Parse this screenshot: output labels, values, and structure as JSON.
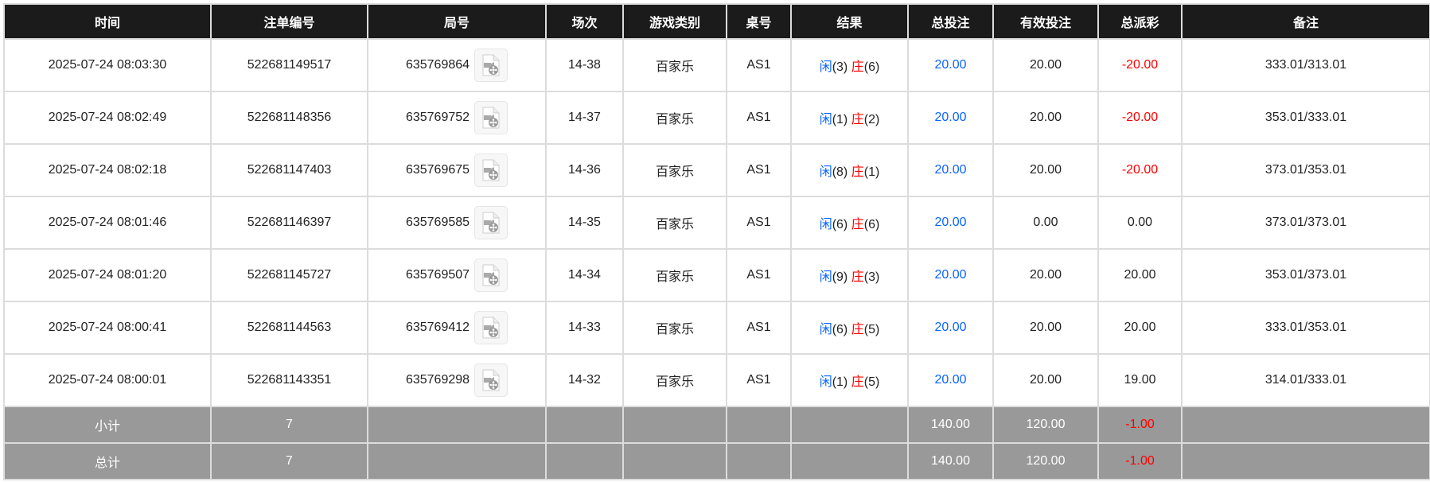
{
  "headers": [
    "时间",
    "注单编号",
    "局号",
    "场次",
    "游戏类别",
    "桌号",
    "结果",
    "总投注",
    "有效投注",
    "总派彩",
    "备注"
  ],
  "rows": [
    {
      "time": "2025-07-24 08:03:30",
      "bet_id": "522681149517",
      "round": "635769864",
      "session": "14-38",
      "game": "百家乐",
      "table": "AS1",
      "player": "闲",
      "player_pts": "(3)",
      "banker": "庄",
      "banker_pts": "(6)",
      "total_bet": "20.00",
      "valid_bet": "20.00",
      "payout": "-20.00",
      "payout_negative": true,
      "note": "333.01/313.01"
    },
    {
      "time": "2025-07-24 08:02:49",
      "bet_id": "522681148356",
      "round": "635769752",
      "session": "14-37",
      "game": "百家乐",
      "table": "AS1",
      "player": "闲",
      "player_pts": "(1)",
      "banker": "庄",
      "banker_pts": "(2)",
      "total_bet": "20.00",
      "valid_bet": "20.00",
      "payout": "-20.00",
      "payout_negative": true,
      "note": "353.01/333.01"
    },
    {
      "time": "2025-07-24 08:02:18",
      "bet_id": "522681147403",
      "round": "635769675",
      "session": "14-36",
      "game": "百家乐",
      "table": "AS1",
      "player": "闲",
      "player_pts": "(8)",
      "banker": "庄",
      "banker_pts": "(1)",
      "total_bet": "20.00",
      "valid_bet": "20.00",
      "payout": "-20.00",
      "payout_negative": true,
      "note": "373.01/353.01"
    },
    {
      "time": "2025-07-24 08:01:46",
      "bet_id": "522681146397",
      "round": "635769585",
      "session": "14-35",
      "game": "百家乐",
      "table": "AS1",
      "player": "闲",
      "player_pts": "(6)",
      "banker": "庄",
      "banker_pts": "(6)",
      "total_bet": "20.00",
      "valid_bet": "0.00",
      "payout": "0.00",
      "payout_negative": false,
      "note": "373.01/373.01"
    },
    {
      "time": "2025-07-24 08:01:20",
      "bet_id": "522681145727",
      "round": "635769507",
      "session": "14-34",
      "game": "百家乐",
      "table": "AS1",
      "player": "闲",
      "player_pts": "(9)",
      "banker": "庄",
      "banker_pts": "(3)",
      "total_bet": "20.00",
      "valid_bet": "20.00",
      "payout": "20.00",
      "payout_negative": false,
      "note": "353.01/373.01"
    },
    {
      "time": "2025-07-24 08:00:41",
      "bet_id": "522681144563",
      "round": "635769412",
      "session": "14-33",
      "game": "百家乐",
      "table": "AS1",
      "player": "闲",
      "player_pts": "(6)",
      "banker": "庄",
      "banker_pts": "(5)",
      "total_bet": "20.00",
      "valid_bet": "20.00",
      "payout": "20.00",
      "payout_negative": false,
      "note": "333.01/353.01"
    },
    {
      "time": "2025-07-24 08:00:01",
      "bet_id": "522681143351",
      "round": "635769298",
      "session": "14-32",
      "game": "百家乐",
      "table": "AS1",
      "player": "闲",
      "player_pts": "(1)",
      "banker": "庄",
      "banker_pts": "(5)",
      "total_bet": "20.00",
      "valid_bet": "20.00",
      "payout": "19.00",
      "payout_negative": false,
      "note": "314.01/333.01"
    }
  ],
  "summary": [
    {
      "label": "小计",
      "count": "7",
      "total_bet": "140.00",
      "valid_bet": "120.00",
      "payout": "-1.00"
    },
    {
      "label": "总计",
      "count": "7",
      "total_bet": "140.00",
      "valid_bet": "120.00",
      "payout": "-1.00"
    }
  ],
  "colors": {
    "header_bg": "#1b1b1b",
    "summary_bg": "#999999",
    "player": "#0a64ff",
    "negative": "#ff0000"
  },
  "icons": {
    "replay": "video-file-icon"
  }
}
